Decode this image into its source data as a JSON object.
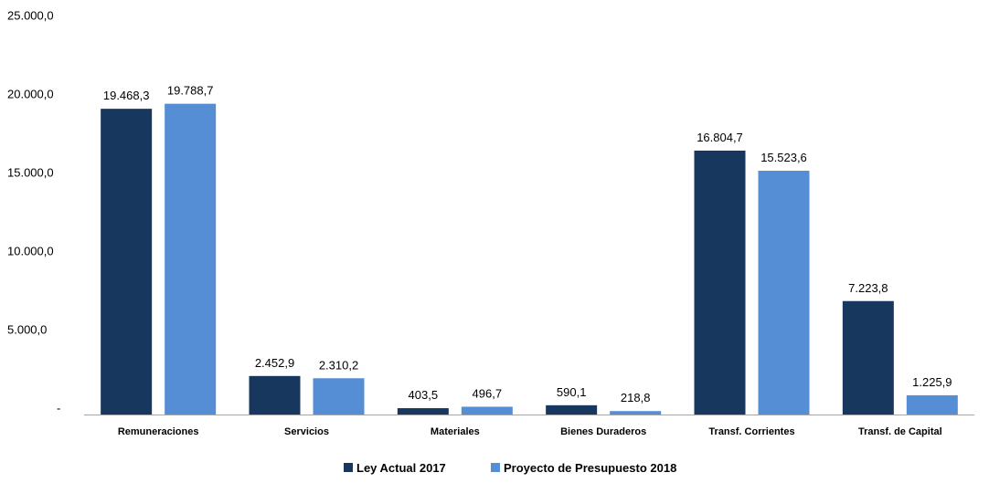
{
  "chart_data": {
    "type": "bar",
    "categories": [
      "Remuneraciones",
      "Servicios",
      "Materiales",
      "Bienes Duraderos",
      "Transf. Corrientes",
      "Transf. de Capital"
    ],
    "series": [
      {
        "name": "Ley Actual 2017",
        "color": "#17375e",
        "values": [
          19468.3,
          2452.9,
          403.5,
          590.1,
          16804.7,
          7223.8
        ],
        "labels": [
          "19.468,3",
          "2.452,9",
          "403,5",
          "590,1",
          "16.804,7",
          "7.223,8"
        ]
      },
      {
        "name": "Proyecto de Presupuesto 2018",
        "color": "#558ed5",
        "values": [
          19788.7,
          2310.2,
          496.7,
          218.8,
          15523.6,
          1225.9
        ],
        "labels": [
          "19.788,7",
          "2.310,2",
          "496,7",
          "218,8",
          "15.523,6",
          "1.225,9"
        ]
      }
    ],
    "ylim": [
      0,
      25000
    ],
    "yticks": [
      0,
      5000,
      10000,
      15000,
      20000,
      25000
    ],
    "ytick_labels": [
      "-",
      "5.000,0",
      "10.000,0",
      "15.000,0",
      "20.000,0",
      "25.000,0"
    ],
    "grid": false,
    "legend_position": "bottom"
  }
}
